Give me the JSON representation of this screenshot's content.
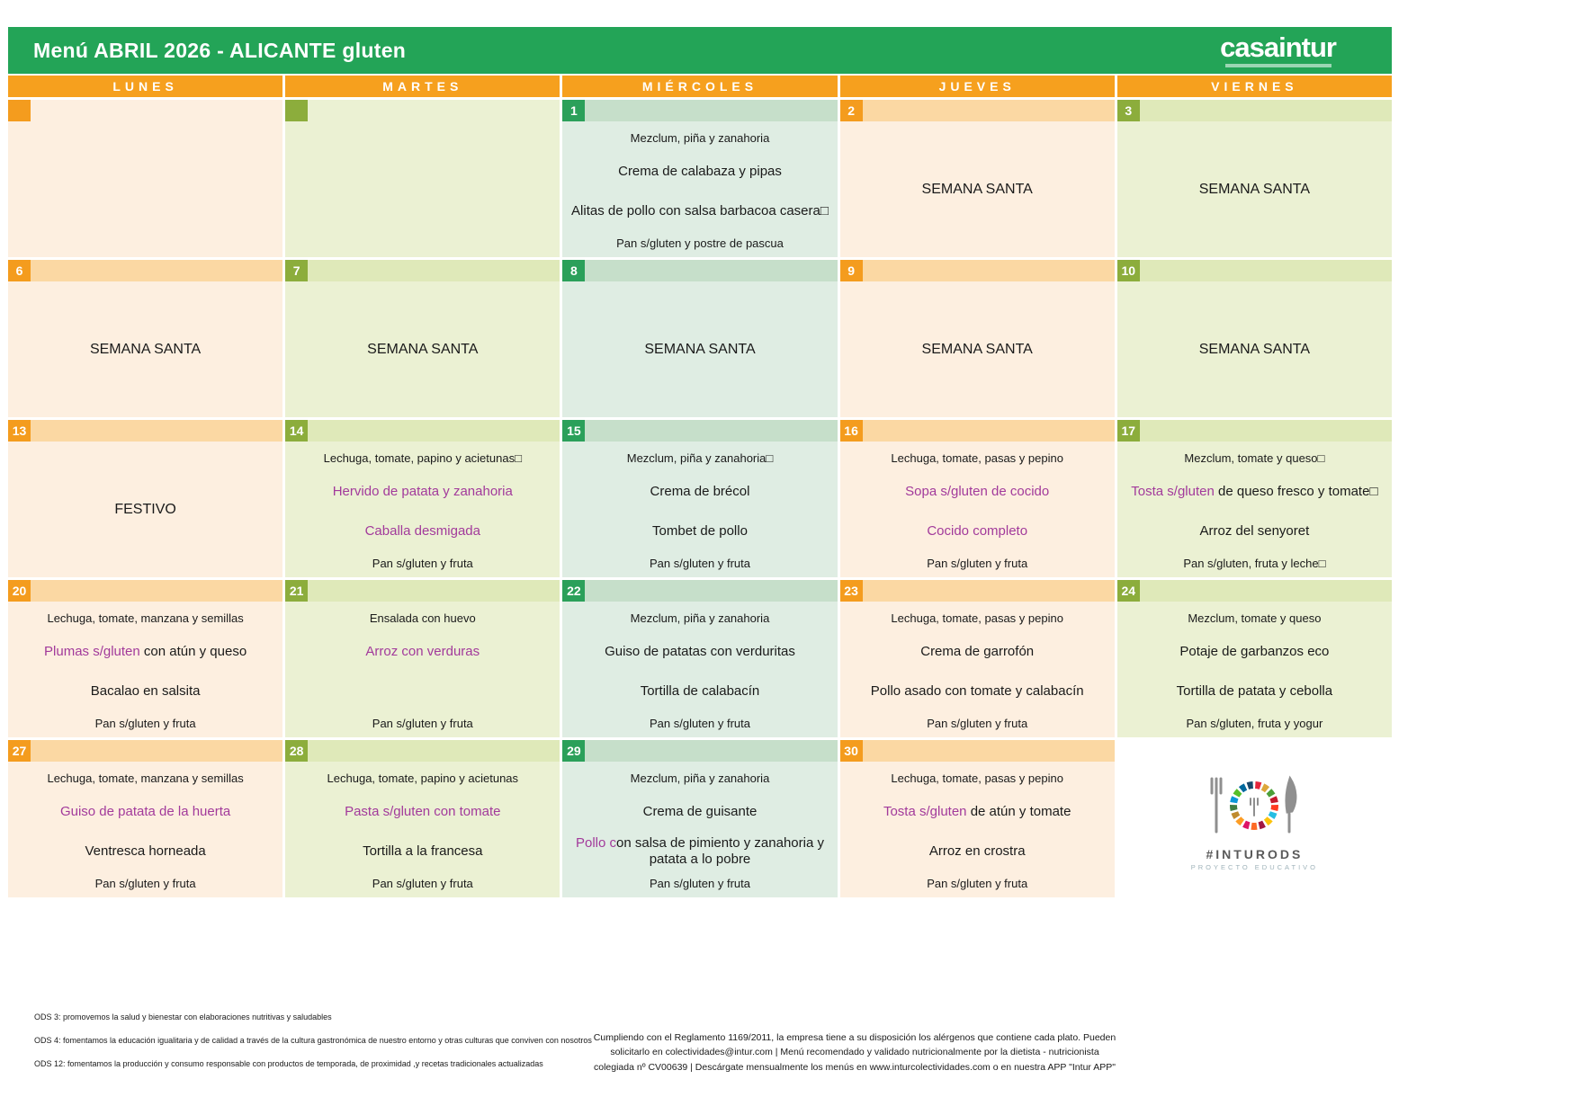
{
  "header": {
    "title": "Menú ABRIL 2026 - ALICANTE gluten",
    "logo": "casaintur"
  },
  "colors": {
    "brand_green": "#23a457",
    "header_orange": "#f6a01e",
    "dish_purple": "#a23a9b",
    "badge_green": "#2ba05a",
    "badge_olive": "#8cad3c",
    "badge_orange": "#f49c1e"
  },
  "calendar": {
    "columns": [
      "LUNES",
      "MARTES",
      "MIÉRCOLES",
      "JUEVES",
      "VIERNES"
    ],
    "weeks": [
      {
        "days": [
          {
            "num": "",
            "kind": "empty"
          },
          {
            "num": "",
            "kind": "empty"
          },
          {
            "num": "1",
            "kind": "menu",
            "salad": "Mezclum, piña y zanahoria",
            "dish1": [
              {
                "text": "Crema de calabaza y pipas"
              }
            ],
            "dish2": [
              {
                "text": "Alitas de pollo con salsa barbacoa casera□"
              }
            ],
            "pan": "Pan s/gluten y postre de pascua"
          },
          {
            "num": "2",
            "kind": "note",
            "note": "SEMANA SANTA"
          },
          {
            "num": "3",
            "kind": "note",
            "note": "SEMANA SANTA"
          }
        ]
      },
      {
        "days": [
          {
            "num": "6",
            "kind": "note",
            "note": "SEMANA SANTA"
          },
          {
            "num": "7",
            "kind": "note",
            "note": "SEMANA SANTA"
          },
          {
            "num": "8",
            "kind": "note",
            "note": "SEMANA SANTA"
          },
          {
            "num": "9",
            "kind": "note",
            "note": "SEMANA SANTA"
          },
          {
            "num": "10",
            "kind": "note",
            "note": "SEMANA SANTA"
          }
        ]
      },
      {
        "days": [
          {
            "num": "13",
            "kind": "note",
            "note": "FESTIVO"
          },
          {
            "num": "14",
            "kind": "menu",
            "salad": "Lechuga, tomate, papino y acietunas□",
            "dish1": [
              {
                "text": "Hervido de patata y zanahoria",
                "purple": true
              }
            ],
            "dish2": [
              {
                "text": "Caballa desmigada",
                "purple": true
              }
            ],
            "pan": "Pan s/gluten y fruta"
          },
          {
            "num": "15",
            "kind": "menu",
            "salad": "Mezclum, piña y zanahoria□",
            "dish1": [
              {
                "text": "Crema de brécol"
              }
            ],
            "dish2": [
              {
                "text": "Tombet de pollo"
              }
            ],
            "pan": "Pan s/gluten y fruta"
          },
          {
            "num": "16",
            "kind": "menu",
            "salad": "Lechuga, tomate, pasas y pepino",
            "dish1": [
              {
                "text": "Sopa s/gluten de cocido",
                "purple": true
              }
            ],
            "dish2": [
              {
                "text": "Cocido completo",
                "purple": true
              }
            ],
            "pan": "Pan s/gluten y fruta"
          },
          {
            "num": "17",
            "kind": "menu",
            "salad": "Mezclum, tomate y queso□",
            "dish1": [
              {
                "text": "Tosta s/gluten ",
                "purple": true
              },
              {
                "text": "de queso fresco y tomate□"
              }
            ],
            "dish2": [
              {
                "text": "Arroz del senyoret"
              }
            ],
            "pan": "Pan s/gluten, fruta y leche□"
          }
        ]
      },
      {
        "days": [
          {
            "num": "20",
            "kind": "menu",
            "salad": "Lechuga, tomate, manzana y semillas",
            "dish1": [
              {
                "text": "Plumas s/gluten ",
                "purple": true
              },
              {
                "text": "con atún y queso"
              }
            ],
            "dish2": [
              {
                "text": "Bacalao en salsita"
              }
            ],
            "pan": "Pan s/gluten y fruta"
          },
          {
            "num": "21",
            "kind": "menu",
            "salad": "Ensalada con huevo",
            "dish1": [
              {
                "text": "Arroz con verduras",
                "purple": true
              }
            ],
            "dish2": [],
            "pan": "Pan s/gluten y fruta"
          },
          {
            "num": "22",
            "kind": "menu",
            "salad": "Mezclum, piña y zanahoria",
            "dish1": [
              {
                "text": "Guiso de patatas con verduritas"
              }
            ],
            "dish2": [
              {
                "text": "Tortilla de calabacín"
              }
            ],
            "pan": "Pan s/gluten y fruta"
          },
          {
            "num": "23",
            "kind": "menu",
            "salad": "Lechuga, tomate, pasas y pepino",
            "dish1": [
              {
                "text": "Crema de garrofón"
              }
            ],
            "dish2": [
              {
                "text": "Pollo asado con tomate y calabacín"
              }
            ],
            "pan": "Pan s/gluten y fruta"
          },
          {
            "num": "24",
            "kind": "menu",
            "salad": "Mezclum, tomate y queso",
            "dish1": [
              {
                "text": "Potaje de garbanzos eco"
              }
            ],
            "dish2": [
              {
                "text": "Tortilla de patata y cebolla"
              }
            ],
            "pan": "Pan s/gluten, fruta y yogur"
          }
        ]
      },
      {
        "days": [
          {
            "num": "27",
            "kind": "menu",
            "salad": "Lechuga, tomate, manzana y semillas",
            "dish1": [
              {
                "text": "Guiso de patata de la huerta",
                "purple": true
              }
            ],
            "dish2": [
              {
                "text": "Ventresca horneada"
              }
            ],
            "pan": "Pan s/gluten y fruta"
          },
          {
            "num": "28",
            "kind": "menu",
            "salad": "Lechuga, tomate, papino y acietunas",
            "dish1": [
              {
                "text": "Pasta s/gluten con tomate",
                "purple": true
              }
            ],
            "dish2": [
              {
                "text": "Tortilla a la francesa"
              }
            ],
            "pan": "Pan s/gluten y fruta"
          },
          {
            "num": "29",
            "kind": "menu",
            "salad": "Mezclum, piña y zanahoria",
            "dish1": [
              {
                "text": "Crema de guisante"
              }
            ],
            "dish2": [
              {
                "text": "Pollo c",
                "purple": true
              },
              {
                "text": "on salsa de pimiento y zanahoria y patata a lo pobre"
              }
            ],
            "pan": "Pan s/gluten y fruta"
          },
          {
            "num": "30",
            "kind": "menu",
            "salad": "Lechuga, tomate, pasas y pepino",
            "dish1": [
              {
                "text": "Tosta s/gluten ",
                "purple": true
              },
              {
                "text": "de atún y tomate"
              }
            ],
            "dish2": [
              {
                "text": "Arroz en crostra"
              }
            ],
            "pan": "Pan s/gluten y fruta"
          },
          {
            "num": "",
            "kind": "logo"
          }
        ]
      }
    ]
  },
  "footer": {
    "ods": [
      "ODS 3: promovemos la salud y bienestar con elaboraciones nutritivas y saludables",
      "ODS 4: fomentamos la educación igualitaria y de calidad a través de la cultura gastronómica de nuestro entorno y otras culturas que conviven con nosotros",
      "ODS 12: fomentamos la producción y consumo responsable con productos de temporada, de proximidad ,y recetas tradicionales actualizadas"
    ],
    "legal": "Cumpliendo con el Reglamento 1169/2011, la empresa tiene a su disposición los alérgenos que contiene cada plato.  Pueden solicitarlo en colectividades@intur.com | Menú recomendado y validado nutricionalmente por la dietista - nutricionista colegiada nº CV00639 | Descárgate mensualmente los menús  en www.inturcolectividades.com o en  nuestra APP \"Intur APP\"",
    "logo": {
      "hashtag": "#INTURODS",
      "subtitle": "PROYECTO EDUCATIVO",
      "ring_colors": [
        "#e5243b",
        "#dda63a",
        "#4c9f38",
        "#c5192d",
        "#ff3a21",
        "#26bde2",
        "#fcc30b",
        "#a21942",
        "#fd6925",
        "#dd1367",
        "#fd9d24",
        "#bf8b2e",
        "#3f7e44",
        "#0a97d9",
        "#56c02b",
        "#00689d",
        "#19486a"
      ]
    }
  }
}
